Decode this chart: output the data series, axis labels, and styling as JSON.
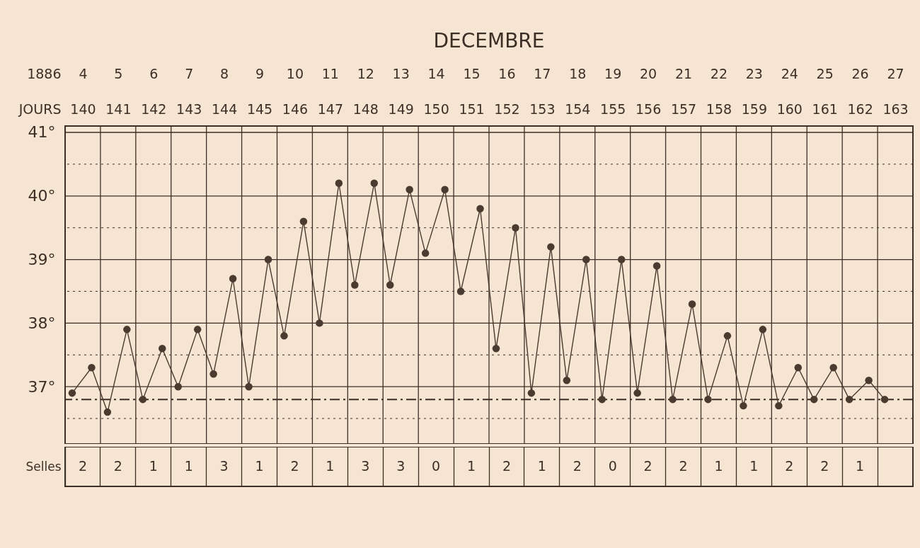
{
  "chart_data": [
    {
      "type": "line",
      "title": "DECEMBRE",
      "xlabel": "1886",
      "x2label": "JOURS",
      "series": [
        {
          "color": "#4a3b30",
          "x": [
            3.7,
            4.25,
            4.7,
            5.25,
            5.7,
            6.25,
            6.7,
            7.25,
            7.7,
            8.25,
            8.7,
            9.25,
            9.7,
            10.25,
            10.7,
            11.25,
            11.7,
            12.25,
            12.7,
            13.25,
            13.7,
            14.25,
            14.7,
            15.25,
            15.7,
            16.25,
            16.7,
            17.25,
            17.7,
            18.25,
            18.7,
            19.25,
            19.7,
            20.25,
            20.7,
            21.25,
            21.7,
            22.25,
            22.7,
            23.25,
            23.7,
            24.25,
            24.7,
            25.25,
            25.7,
            26.25,
            26.7
          ],
          "values": [
            36.9,
            37.3,
            36.6,
            37.9,
            36.8,
            37.6,
            37.0,
            37.9,
            37.2,
            38.7,
            37.0,
            39.0,
            37.8,
            39.6,
            38.0,
            40.2,
            38.6,
            40.2,
            38.6,
            40.1,
            39.1,
            40.1,
            38.5,
            39.8,
            37.6,
            39.5,
            36.9,
            39.2,
            37.1,
            39.0,
            36.8,
            39.0,
            36.9,
            38.9,
            36.8,
            38.3,
            36.8,
            37.8,
            36.7,
            37.9,
            36.7,
            37.3,
            36.8,
            37.3,
            36.8,
            37.1,
            36.8
          ]
        }
      ],
      "xlim": [
        3.5,
        27.5
      ],
      "xticks": [
        4,
        5,
        6,
        7,
        8,
        9,
        10,
        11,
        12,
        13,
        14,
        15,
        16,
        17,
        18,
        19,
        20,
        21,
        22,
        23,
        24,
        25,
        26,
        27,
        {
          "value": 3.5,
          "label": null
        },
        {
          "value": 4.5,
          "label": null
        },
        {
          "value": 5.5,
          "label": null
        },
        {
          "value": 6.5,
          "label": null
        },
        {
          "value": 7.5,
          "label": null
        },
        {
          "value": 8.5,
          "label": null
        },
        {
          "value": 9.5,
          "label": null
        },
        {
          "value": 10.5,
          "label": null
        },
        {
          "value": 11.5,
          "label": null
        },
        {
          "value": 12.5,
          "label": null
        },
        {
          "value": 13.5,
          "label": null
        },
        {
          "value": 14.5,
          "label": null
        },
        {
          "value": 15.5,
          "label": null
        },
        {
          "value": 16.5,
          "label": null
        },
        {
          "value": 17.5,
          "label": null
        },
        {
          "value": 18.5,
          "label": null
        },
        {
          "value": 19.5,
          "label": null
        },
        {
          "value": 20.5,
          "label": null
        },
        {
          "value": 21.5,
          "label": null
        },
        {
          "value": 22.5,
          "label": null
        },
        {
          "value": 23.5,
          "label": null
        },
        {
          "value": 24.5,
          "label": null
        },
        {
          "value": 25.5,
          "label": null
        },
        {
          "value": 26.5,
          "label": null
        },
        {
          "value": 27.5,
          "label": null
        }
      ],
      "x2lim": [
        139.5,
        163.5
      ],
      "x2ticks": [
        140,
        141,
        142,
        143,
        144,
        145,
        146,
        147,
        148,
        149,
        150,
        151,
        152,
        153,
        154,
        155,
        156,
        157,
        158,
        159,
        160,
        161,
        162,
        163
      ],
      "ylim": [
        36.1,
        41.1
      ],
      "yticks": [
        {
          "value": 36.5,
          "label": null
        },
        {
          "value": 37,
          "label": "37°"
        },
        {
          "value": 37.5,
          "label": null
        },
        {
          "value": 38,
          "label": "38°"
        },
        {
          "value": 38.5,
          "label": null
        },
        {
          "value": 39,
          "label": "39°"
        },
        {
          "value": 39.5,
          "label": null
        },
        {
          "value": 40,
          "label": "40°"
        },
        {
          "value": 40.5,
          "label": null
        },
        {
          "value": 41,
          "label": "41°"
        }
      ],
      "grid": true,
      "marker": "circle",
      "line_style": "solid",
      "ref_lines": [
        {
          "axis": "y",
          "value": 36.8,
          "color": "#3b2f26",
          "line_style": "dashed"
        }
      ]
    },
    {
      "type": "other",
      "ylabel": "Selles",
      "categories": [
        null,
        null,
        null,
        null,
        null,
        null,
        null,
        null,
        null,
        null,
        null,
        null,
        null,
        null,
        null,
        null,
        null,
        null,
        null,
        null,
        null,
        null,
        null,
        null
      ],
      "values": [
        2,
        2,
        1,
        1,
        3,
        1,
        2,
        1,
        3,
        3,
        0,
        1,
        2,
        1,
        2,
        0,
        2,
        2,
        1,
        1,
        2,
        2,
        1,
        null
      ],
      "data_labels": true
    }
  ]
}
